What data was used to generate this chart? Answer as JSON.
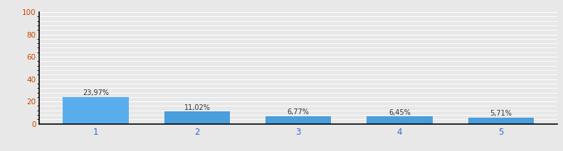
{
  "categories": [
    1,
    2,
    3,
    4,
    5
  ],
  "values": [
    23.97,
    11.02,
    6.77,
    6.45,
    5.71
  ],
  "labels": [
    "23,97%",
    "11,02%",
    "6,77%",
    "6,45%",
    "5,71%"
  ],
  "bar_color_1": "#5aadec",
  "bar_color_rest": "#4a9edc",
  "ylim": [
    0,
    100
  ],
  "yticks": [
    0,
    20,
    40,
    60,
    80,
    100
  ],
  "background_color": "#e8e8e8",
  "plot_bg_color": "#e8e8e8",
  "grid_color": "#ffffff",
  "ytick_color": "#cc4400",
  "xtick_color": "#3366cc",
  "label_fontsize": 7.0,
  "label_color": "#333333",
  "spine_color": "#000000"
}
